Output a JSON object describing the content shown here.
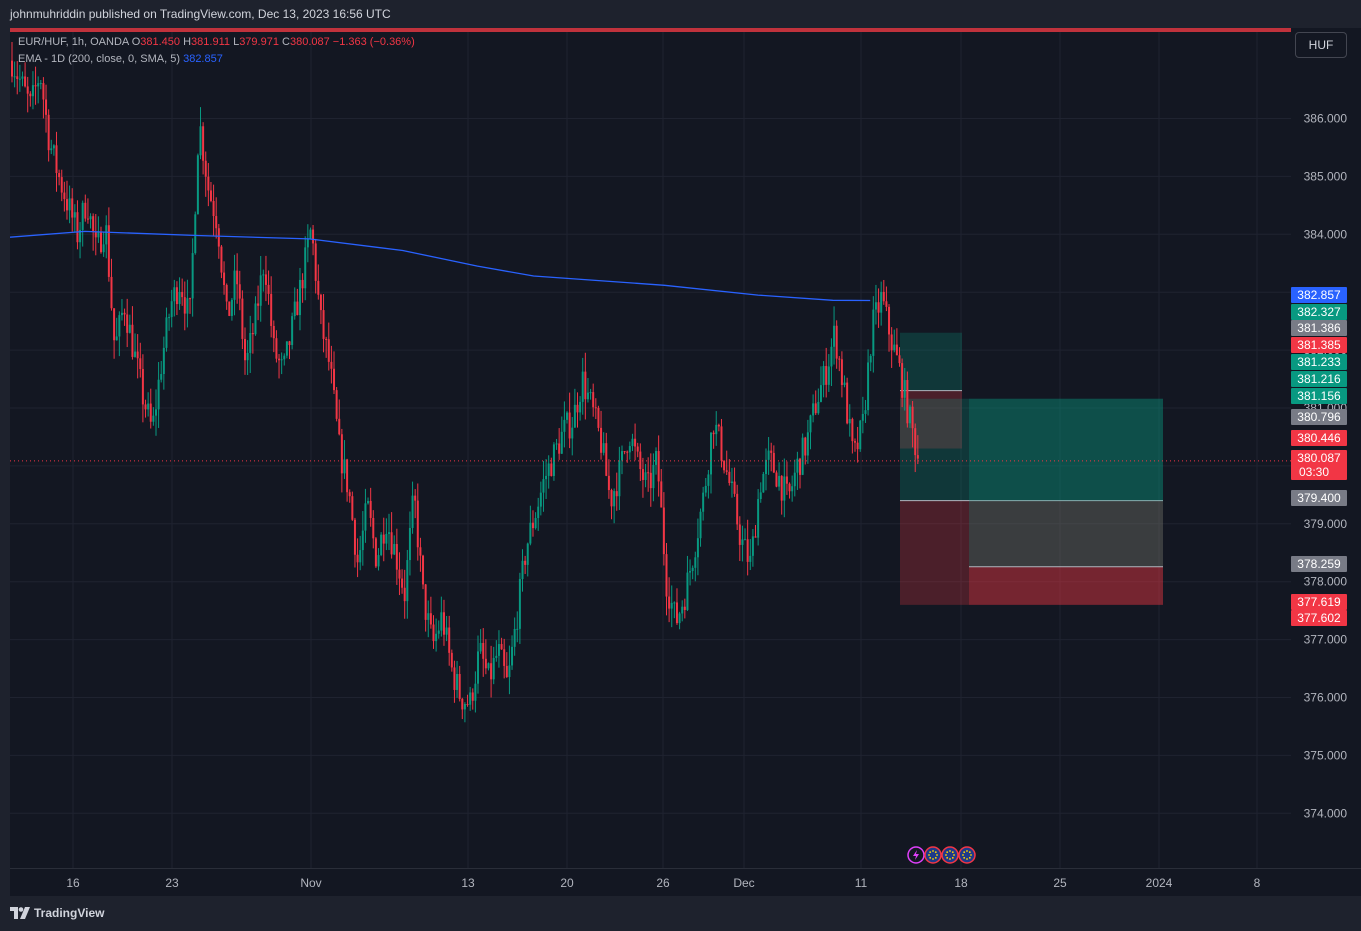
{
  "header": {
    "publisher": "johnmuhriddin published on TradingView.com, Dec 13, 2023 16:56 UTC"
  },
  "legend": {
    "symbol": "EUR/HUF, 1h, OANDA",
    "open_label": "O",
    "open": "381.450",
    "high_label": "H",
    "high": "381.911",
    "low_label": "L",
    "low": "379.971",
    "close_label": "C",
    "close": "380.087",
    "change": "−1.363 (−0.36%)",
    "indicator": "EMA - 1D (200, close, 0, SMA, 5)",
    "indicator_value": "382.857"
  },
  "currency_button": "HUF",
  "footer": {
    "brand": "TradingView",
    "logo_icon": "tradingview-logo-icon"
  },
  "colors": {
    "up": "#089981",
    "down": "#f23645",
    "ema": "#2962ff",
    "bg": "#131722",
    "panel": "#1e222d"
  },
  "chart_data": {
    "type": "candlestick",
    "symbol": "EUR/HUF",
    "interval": "1h",
    "ylim": [
      373.0,
      387.2
    ],
    "y_ticks": [
      374,
      375,
      376,
      377,
      378,
      379,
      380,
      381,
      382,
      383,
      384,
      385,
      386
    ],
    "y_tick_labels": [
      "374.000",
      "375.000",
      "376.000",
      "377.000",
      "378.000",
      "379.000",
      "380.000",
      "381.000",
      "382.000",
      "383.000",
      "384.000",
      "385.000",
      "386.000"
    ],
    "x_tick_labels": [
      "16",
      "23",
      "Nov",
      "13",
      "20",
      "26",
      "Dec",
      "11",
      "18",
      "25",
      "2024",
      "8"
    ],
    "grid": true,
    "price_path": [
      [
        0,
        387.0
      ],
      [
        2,
        386.2
      ],
      [
        3,
        386.8
      ],
      [
        4,
        385.6
      ],
      [
        5,
        385.0
      ],
      [
        7,
        384.0
      ],
      [
        8,
        384.6
      ],
      [
        9,
        383.7
      ],
      [
        10,
        384.2
      ],
      [
        11,
        382.0
      ],
      [
        12,
        382.8
      ],
      [
        14,
        381.2
      ],
      [
        15,
        380.6
      ],
      [
        16,
        381.8
      ],
      [
        17,
        382.8
      ],
      [
        18,
        383.2
      ],
      [
        19,
        382.5
      ],
      [
        20,
        386.0
      ],
      [
        21,
        384.8
      ],
      [
        22,
        384.2
      ],
      [
        23,
        382.5
      ],
      [
        24,
        383.3
      ],
      [
        25,
        381.7
      ],
      [
        26,
        382.5
      ],
      [
        27,
        383.6
      ],
      [
        28,
        382.0
      ],
      [
        29,
        381.6
      ],
      [
        30,
        382.4
      ],
      [
        31,
        383.2
      ],
      [
        32,
        384.1
      ],
      [
        33,
        382.5
      ],
      [
        34,
        381.7
      ],
      [
        35,
        380.3
      ],
      [
        36,
        379.6
      ],
      [
        37,
        378.3
      ],
      [
        38,
        379.3
      ],
      [
        39,
        378.4
      ],
      [
        40,
        379.1
      ],
      [
        41,
        378.5
      ],
      [
        42,
        377.8
      ],
      [
        43,
        379.5
      ],
      [
        44,
        377.7
      ],
      [
        45,
        376.9
      ],
      [
        46,
        377.4
      ],
      [
        47,
        376.5
      ],
      [
        48,
        376.0
      ],
      [
        49,
        375.9
      ],
      [
        50,
        376.8
      ],
      [
        51,
        376.3
      ],
      [
        52,
        376.8
      ],
      [
        53,
        376.2
      ],
      [
        54,
        377.4
      ],
      [
        55,
        378.6
      ],
      [
        56,
        379.2
      ],
      [
        57,
        379.8
      ],
      [
        58,
        380.2
      ],
      [
        59,
        380.6
      ],
      [
        60,
        380.8
      ],
      [
        61,
        381.5
      ],
      [
        62,
        381.0
      ],
      [
        63,
        380.4
      ],
      [
        64,
        379.4
      ],
      [
        65,
        379.9
      ],
      [
        66,
        380.6
      ],
      [
        67,
        380.0
      ],
      [
        68,
        379.6
      ],
      [
        69,
        380.1
      ],
      [
        70,
        378.0
      ],
      [
        71,
        377.3
      ],
      [
        72,
        377.8
      ],
      [
        73,
        378.6
      ],
      [
        74,
        379.5
      ],
      [
        75,
        380.8
      ],
      [
        76,
        380.2
      ],
      [
        77,
        379.5
      ],
      [
        78,
        378.7
      ],
      [
        79,
        378.3
      ],
      [
        80,
        379.7
      ],
      [
        81,
        380.1
      ],
      [
        82,
        379.8
      ],
      [
        83,
        379.4
      ],
      [
        84,
        380.0
      ],
      [
        85,
        380.4
      ],
      [
        86,
        381.1
      ],
      [
        87,
        381.6
      ],
      [
        88,
        382.3
      ],
      [
        89,
        381.3
      ],
      [
        90,
        380.1
      ],
      [
        91,
        380.7
      ],
      [
        92,
        382.4
      ],
      [
        93,
        382.9
      ],
      [
        94,
        382.2
      ],
      [
        95,
        381.6
      ],
      [
        96,
        380.8
      ],
      [
        97,
        380.09
      ]
    ],
    "ema": {
      "name": "EMA - 1D (200, close, 0, SMA, 5)",
      "value": 382.857,
      "path": [
        [
          0,
          383.95
        ],
        [
          8,
          384.05
        ],
        [
          20,
          383.98
        ],
        [
          32,
          383.92
        ],
        [
          42,
          383.72
        ],
        [
          50,
          383.45
        ],
        [
          56,
          383.28
        ],
        [
          70,
          383.12
        ],
        [
          80,
          382.95
        ],
        [
          88,
          382.86
        ],
        [
          92,
          382.857
        ]
      ]
    },
    "price_labels": [
      {
        "value": "382.857",
        "color": "#2962ff"
      },
      {
        "value": "382.327",
        "color": "#089981"
      },
      {
        "value": "381.386",
        "color": "#787b86"
      },
      {
        "value": "381.385",
        "color": "#f23645"
      },
      {
        "value": "381.233",
        "color": "#089981"
      },
      {
        "value": "381.216",
        "color": "#089981"
      },
      {
        "value": "381.156",
        "color": "#089981"
      },
      {
        "value": "380.796",
        "color": "#787b86"
      },
      {
        "value": "380.446",
        "color": "#f23645"
      },
      {
        "value": "380.087",
        "sub": "03:30",
        "color": "#f23645"
      },
      {
        "value": "379.400",
        "color": "#787b86"
      },
      {
        "value": "378.259",
        "color": "#787b86"
      },
      {
        "value": "377.619",
        "color": "#f23645"
      },
      {
        "value": "377.602",
        "color": "#f23645"
      }
    ],
    "positions": [
      {
        "entry": 381.3,
        "stop": 380.3,
        "target": 382.3
      },
      {
        "entry": 379.4,
        "stop": 377.6,
        "target": 381.16
      },
      {
        "entry": 378.259,
        "stop": 377.6,
        "target": 381.16
      }
    ],
    "last_price": 380.087,
    "events_icons": [
      "lightning-icon",
      "eu-flag-icon",
      "eu-flag-icon",
      "eu-flag-icon"
    ]
  }
}
